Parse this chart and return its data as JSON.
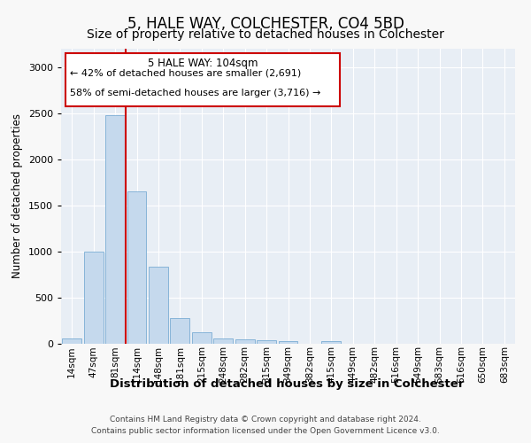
{
  "title": "5, HALE WAY, COLCHESTER, CO4 5BD",
  "subtitle": "Size of property relative to detached houses in Colchester",
  "xlabel": "Distribution of detached houses by size in Colchester",
  "ylabel": "Number of detached properties",
  "categories": [
    "14sqm",
    "47sqm",
    "81sqm",
    "114sqm",
    "148sqm",
    "181sqm",
    "215sqm",
    "248sqm",
    "282sqm",
    "315sqm",
    "349sqm",
    "382sqm",
    "415sqm",
    "449sqm",
    "482sqm",
    "516sqm",
    "549sqm",
    "583sqm",
    "616sqm",
    "650sqm",
    "683sqm"
  ],
  "values": [
    55,
    1000,
    2480,
    1650,
    830,
    270,
    120,
    55,
    40,
    35,
    20,
    0,
    20,
    0,
    0,
    0,
    0,
    0,
    0,
    0,
    0
  ],
  "bar_color": "#c5d9ed",
  "bar_edge_color": "#7aadd4",
  "vline_x": 2.5,
  "vline_color": "#cc0000",
  "box_edge_color": "#cc0000",
  "property_label": "5 HALE WAY: 104sqm",
  "annotation_line1": "← 42% of detached houses are smaller (2,691)",
  "annotation_line2": "58% of semi-detached houses are larger (3,716) →",
  "ylim": [
    0,
    3200
  ],
  "yticks": [
    0,
    500,
    1000,
    1500,
    2000,
    2500,
    3000
  ],
  "title_fontsize": 12,
  "subtitle_fontsize": 10,
  "tick_fontsize": 7.5,
  "ylabel_fontsize": 8.5,
  "xlabel_fontsize": 9.5,
  "footer1": "Contains HM Land Registry data © Crown copyright and database right 2024.",
  "footer2": "Contains public sector information licensed under the Open Government Licence v3.0.",
  "background_color": "#e8eef5",
  "grid_color": "#ffffff",
  "fig_facecolor": "#f8f8f8"
}
